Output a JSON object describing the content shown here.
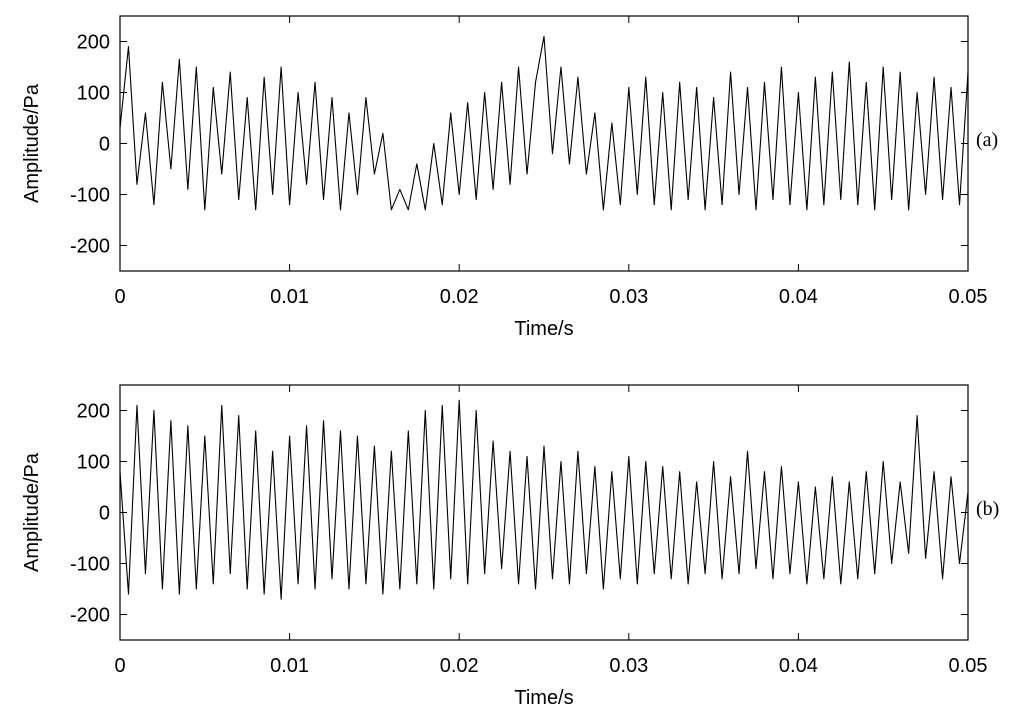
{
  "chart_data": [
    {
      "type": "line",
      "panel_label": "(a)",
      "xlabel": "Time/s",
      "ylabel": "Amplitude/Pa",
      "xlim": [
        0,
        0.05
      ],
      "ylim": [
        -250,
        250
      ],
      "xticks": [
        0,
        0.01,
        0.02,
        0.03,
        0.04,
        0.05
      ],
      "xtick_labels": [
        "0",
        "0.01",
        "0.02",
        "0.03",
        "0.04",
        "0.05"
      ],
      "yticks": [
        200,
        100,
        0,
        -100,
        -200
      ],
      "ytick_labels": [
        "200",
        "100",
        "0",
        "-100",
        "-200"
      ],
      "grid": false,
      "line_color": "#000000",
      "series": [
        {
          "x": [
            0,
            0.0005,
            0.001,
            0.0015,
            0.002,
            0.0025,
            0.003,
            0.0035,
            0.004,
            0.0045,
            0.005,
            0.0055,
            0.006,
            0.0065,
            0.007,
            0.0075,
            0.008,
            0.0085,
            0.009,
            0.0095,
            0.01,
            0.0105,
            0.011,
            0.0115,
            0.012,
            0.0125,
            0.013,
            0.0135,
            0.014,
            0.0145,
            0.015,
            0.0155,
            0.016,
            0.0165,
            0.017,
            0.0175,
            0.018,
            0.0185,
            0.019,
            0.0195,
            0.02,
            0.0205,
            0.021,
            0.0215,
            0.022,
            0.0225,
            0.023,
            0.0235,
            0.024,
            0.0245,
            0.025,
            0.0255,
            0.026,
            0.0265,
            0.027,
            0.0275,
            0.028,
            0.0285,
            0.029,
            0.0295,
            0.03,
            0.0305,
            0.031,
            0.0315,
            0.032,
            0.0325,
            0.033,
            0.0335,
            0.034,
            0.0345,
            0.035,
            0.0355,
            0.036,
            0.0365,
            0.037,
            0.0375,
            0.038,
            0.0385,
            0.039,
            0.0395,
            0.04,
            0.0405,
            0.041,
            0.0415,
            0.042,
            0.0425,
            0.043,
            0.0435,
            0.044,
            0.0445,
            0.045,
            0.0455,
            0.046,
            0.0465,
            0.047,
            0.0475,
            0.048,
            0.0485,
            0.049,
            0.0495,
            0.05
          ],
          "y": [
            30,
            190,
            -80,
            60,
            -120,
            120,
            -50,
            165,
            -90,
            150,
            -130,
            110,
            -60,
            140,
            -110,
            90,
            -130,
            130,
            -100,
            150,
            -120,
            100,
            -80,
            120,
            -110,
            90,
            -130,
            60,
            -100,
            90,
            -60,
            20,
            -130,
            -90,
            -130,
            -40,
            -130,
            0,
            -120,
            60,
            -100,
            80,
            -110,
            100,
            -90,
            120,
            -80,
            150,
            -60,
            120,
            210,
            -20,
            150,
            -40,
            130,
            -60,
            60,
            -130,
            40,
            -120,
            110,
            -100,
            130,
            -120,
            100,
            -130,
            120,
            -110,
            110,
            -130,
            90,
            -120,
            140,
            -100,
            110,
            -130,
            120,
            -110,
            150,
            -120,
            100,
            -130,
            130,
            -120,
            140,
            -110,
            160,
            -120,
            120,
            -130,
            150,
            -110,
            140,
            -130,
            100,
            -100,
            130,
            -110,
            110,
            -120,
            140
          ]
        }
      ]
    },
    {
      "type": "line",
      "panel_label": "(b)",
      "xlabel": "Time/s",
      "ylabel": "Amplitude/Pa",
      "xlim": [
        0,
        0.05
      ],
      "ylim": [
        -250,
        250
      ],
      "xticks": [
        0,
        0.01,
        0.02,
        0.03,
        0.04,
        0.05
      ],
      "xtick_labels": [
        "0",
        "0.01",
        "0.02",
        "0.03",
        "0.04",
        "0.05"
      ],
      "yticks": [
        200,
        100,
        0,
        -100,
        -200
      ],
      "ytick_labels": [
        "200",
        "100",
        "0",
        "-100",
        "-200"
      ],
      "grid": false,
      "line_color": "#000000",
      "series": [
        {
          "x": [
            0,
            0.0005,
            0.001,
            0.0015,
            0.002,
            0.0025,
            0.003,
            0.0035,
            0.004,
            0.0045,
            0.005,
            0.0055,
            0.006,
            0.0065,
            0.007,
            0.0075,
            0.008,
            0.0085,
            0.009,
            0.0095,
            0.01,
            0.0105,
            0.011,
            0.0115,
            0.012,
            0.0125,
            0.013,
            0.0135,
            0.014,
            0.0145,
            0.015,
            0.0155,
            0.016,
            0.0165,
            0.017,
            0.0175,
            0.018,
            0.0185,
            0.019,
            0.0195,
            0.02,
            0.0205,
            0.021,
            0.0215,
            0.022,
            0.0225,
            0.023,
            0.0235,
            0.024,
            0.0245,
            0.025,
            0.0255,
            0.026,
            0.0265,
            0.027,
            0.0275,
            0.028,
            0.0285,
            0.029,
            0.0295,
            0.03,
            0.0305,
            0.031,
            0.0315,
            0.032,
            0.0325,
            0.033,
            0.0335,
            0.034,
            0.0345,
            0.035,
            0.0355,
            0.036,
            0.0365,
            0.037,
            0.0375,
            0.038,
            0.0385,
            0.039,
            0.0395,
            0.04,
            0.0405,
            0.041,
            0.0415,
            0.042,
            0.0425,
            0.043,
            0.0435,
            0.044,
            0.0445,
            0.045,
            0.0455,
            0.046,
            0.0465,
            0.047,
            0.0475,
            0.048,
            0.0485,
            0.049,
            0.0495,
            0.05
          ],
          "y": [
            80,
            -160,
            210,
            -120,
            200,
            -150,
            180,
            -160,
            170,
            -150,
            150,
            -140,
            210,
            -120,
            190,
            -150,
            160,
            -160,
            120,
            -170,
            150,
            -140,
            170,
            -150,
            180,
            -130,
            160,
            -150,
            150,
            -140,
            130,
            -160,
            120,
            -150,
            160,
            -140,
            200,
            -150,
            210,
            -130,
            220,
            -140,
            200,
            -120,
            140,
            -110,
            120,
            -140,
            110,
            -150,
            130,
            -130,
            100,
            -140,
            120,
            -120,
            90,
            -150,
            80,
            -130,
            110,
            -140,
            100,
            -120,
            90,
            -130,
            80,
            -140,
            60,
            -120,
            100,
            -130,
            70,
            -120,
            120,
            -110,
            80,
            -130,
            90,
            -120,
            60,
            -140,
            50,
            -130,
            70,
            -140,
            60,
            -130,
            80,
            -120,
            100,
            -100,
            60,
            -80,
            190,
            -90,
            80,
            -130,
            70,
            -100,
            40
          ]
        }
      ]
    }
  ]
}
